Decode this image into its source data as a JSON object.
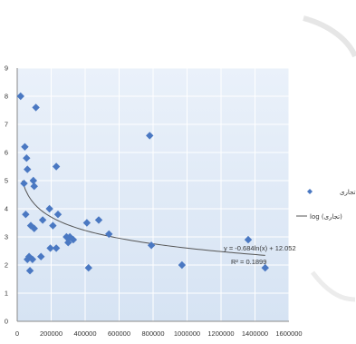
{
  "chart_data": {
    "type": "scatter",
    "title": "",
    "xlabel": "",
    "ylabel": "",
    "xlim": [
      0,
      1600000
    ],
    "ylim": [
      0,
      9
    ],
    "x_ticks": [
      "0",
      "200000",
      "400000",
      "600000",
      "800000",
      "1000000",
      "1200000",
      "1400000",
      "1600000"
    ],
    "y_ticks": [
      "0",
      "1",
      "2",
      "3",
      "4",
      "5",
      "6",
      "7",
      "8",
      "9"
    ],
    "grid": true,
    "legend_position": "right",
    "series": [
      {
        "name": "تجاری",
        "color": "#4a78c2",
        "marker": "diamond",
        "points": [
          [
            20000,
            8.0
          ],
          [
            110000,
            7.6
          ],
          [
            45000,
            6.2
          ],
          [
            55000,
            5.8
          ],
          [
            60000,
            5.4
          ],
          [
            230000,
            5.5
          ],
          [
            95000,
            5.0
          ],
          [
            100000,
            4.8
          ],
          [
            40000,
            4.9
          ],
          [
            50000,
            3.8
          ],
          [
            80000,
            3.4
          ],
          [
            100000,
            3.3
          ],
          [
            150000,
            3.6
          ],
          [
            190000,
            4.0
          ],
          [
            240000,
            3.8
          ],
          [
            210000,
            3.4
          ],
          [
            230000,
            2.6
          ],
          [
            195000,
            2.6
          ],
          [
            70000,
            2.3
          ],
          [
            60000,
            2.2
          ],
          [
            90000,
            2.2
          ],
          [
            75000,
            1.8
          ],
          [
            140000,
            2.3
          ],
          [
            290000,
            3.0
          ],
          [
            310000,
            3.0
          ],
          [
            300000,
            2.8
          ],
          [
            330000,
            2.9
          ],
          [
            410000,
            3.5
          ],
          [
            480000,
            3.6
          ],
          [
            540000,
            3.1
          ],
          [
            420000,
            1.9
          ],
          [
            780000,
            6.6
          ],
          [
            790000,
            2.7
          ],
          [
            970000,
            2.0
          ],
          [
            1360000,
            2.9
          ],
          [
            1460000,
            1.9
          ]
        ]
      }
    ],
    "trendline": {
      "name": "log (تجاری)",
      "type": "logarithmic",
      "slope": -0.684,
      "intercept": 12.052,
      "equation": "y = -0.684ln(x) + 12.052",
      "r_squared": "R² = 0.1899",
      "color": "#555555",
      "x_range": [
        30000,
        1460000
      ]
    }
  },
  "legend": {
    "series_label": "تجاری",
    "trend_label": "log (تجاری)"
  }
}
